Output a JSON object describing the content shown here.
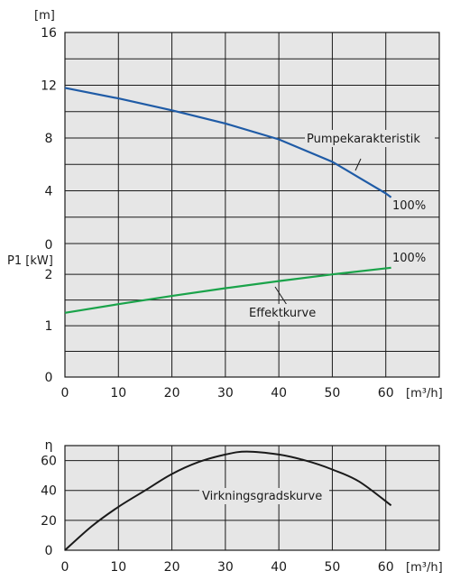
{
  "chart_data": [
    {
      "type": "line",
      "name": "pump-curve",
      "ylabel": "[m]",
      "xlabel": "[m³/h]",
      "xlim": [
        0,
        70
      ],
      "ylim": [
        0,
        16
      ],
      "xticks": [
        0,
        10,
        20,
        30,
        40,
        50,
        60
      ],
      "yticks": [
        4,
        8,
        12,
        16
      ],
      "grid": true,
      "series": [
        {
          "name": "Pumpekarakteristik",
          "end_label": "100%",
          "color": "#1f5ba6",
          "x": [
            0,
            10,
            20,
            30,
            40,
            50,
            55,
            60,
            61
          ],
          "y": [
            11.8,
            11.0,
            10.1,
            9.1,
            7.9,
            6.2,
            5.0,
            3.8,
            3.5
          ]
        }
      ]
    },
    {
      "type": "line",
      "name": "power-curve",
      "ylabel": "P1 [kW]",
      "xlabel": "[m³/h]",
      "xlim": [
        0,
        70
      ],
      "ylim": [
        0,
        2.6
      ],
      "xticks": [
        0,
        10,
        20,
        30,
        40,
        50,
        60
      ],
      "yticks": [
        0,
        1,
        2
      ],
      "grid": true,
      "series": [
        {
          "name": "Effektkurve",
          "end_label": "100%",
          "color": "#1aa34a",
          "x": [
            0,
            10,
            20,
            30,
            40,
            50,
            61
          ],
          "y": [
            1.25,
            1.42,
            1.58,
            1.73,
            1.87,
            2.0,
            2.13
          ]
        }
      ]
    },
    {
      "type": "line",
      "name": "efficiency-curve",
      "ylabel": "η",
      "xlabel": "[m³/h]",
      "xlim": [
        0,
        70
      ],
      "ylim": [
        0,
        70
      ],
      "xticks": [
        0,
        10,
        20,
        30,
        40,
        50,
        60
      ],
      "yticks": [
        0,
        20,
        40,
        60
      ],
      "grid": true,
      "series": [
        {
          "name": "Virkningsgradskurve",
          "color": "#1a1a1a",
          "x": [
            0,
            5,
            10,
            15,
            20,
            25,
            30,
            34,
            40,
            45,
            50,
            55,
            61
          ],
          "y": [
            0,
            16,
            29,
            40,
            51,
            59,
            64,
            66,
            64,
            60,
            54,
            46,
            30
          ]
        }
      ]
    }
  ],
  "labels": {
    "top_bottom_zero": "0"
  }
}
